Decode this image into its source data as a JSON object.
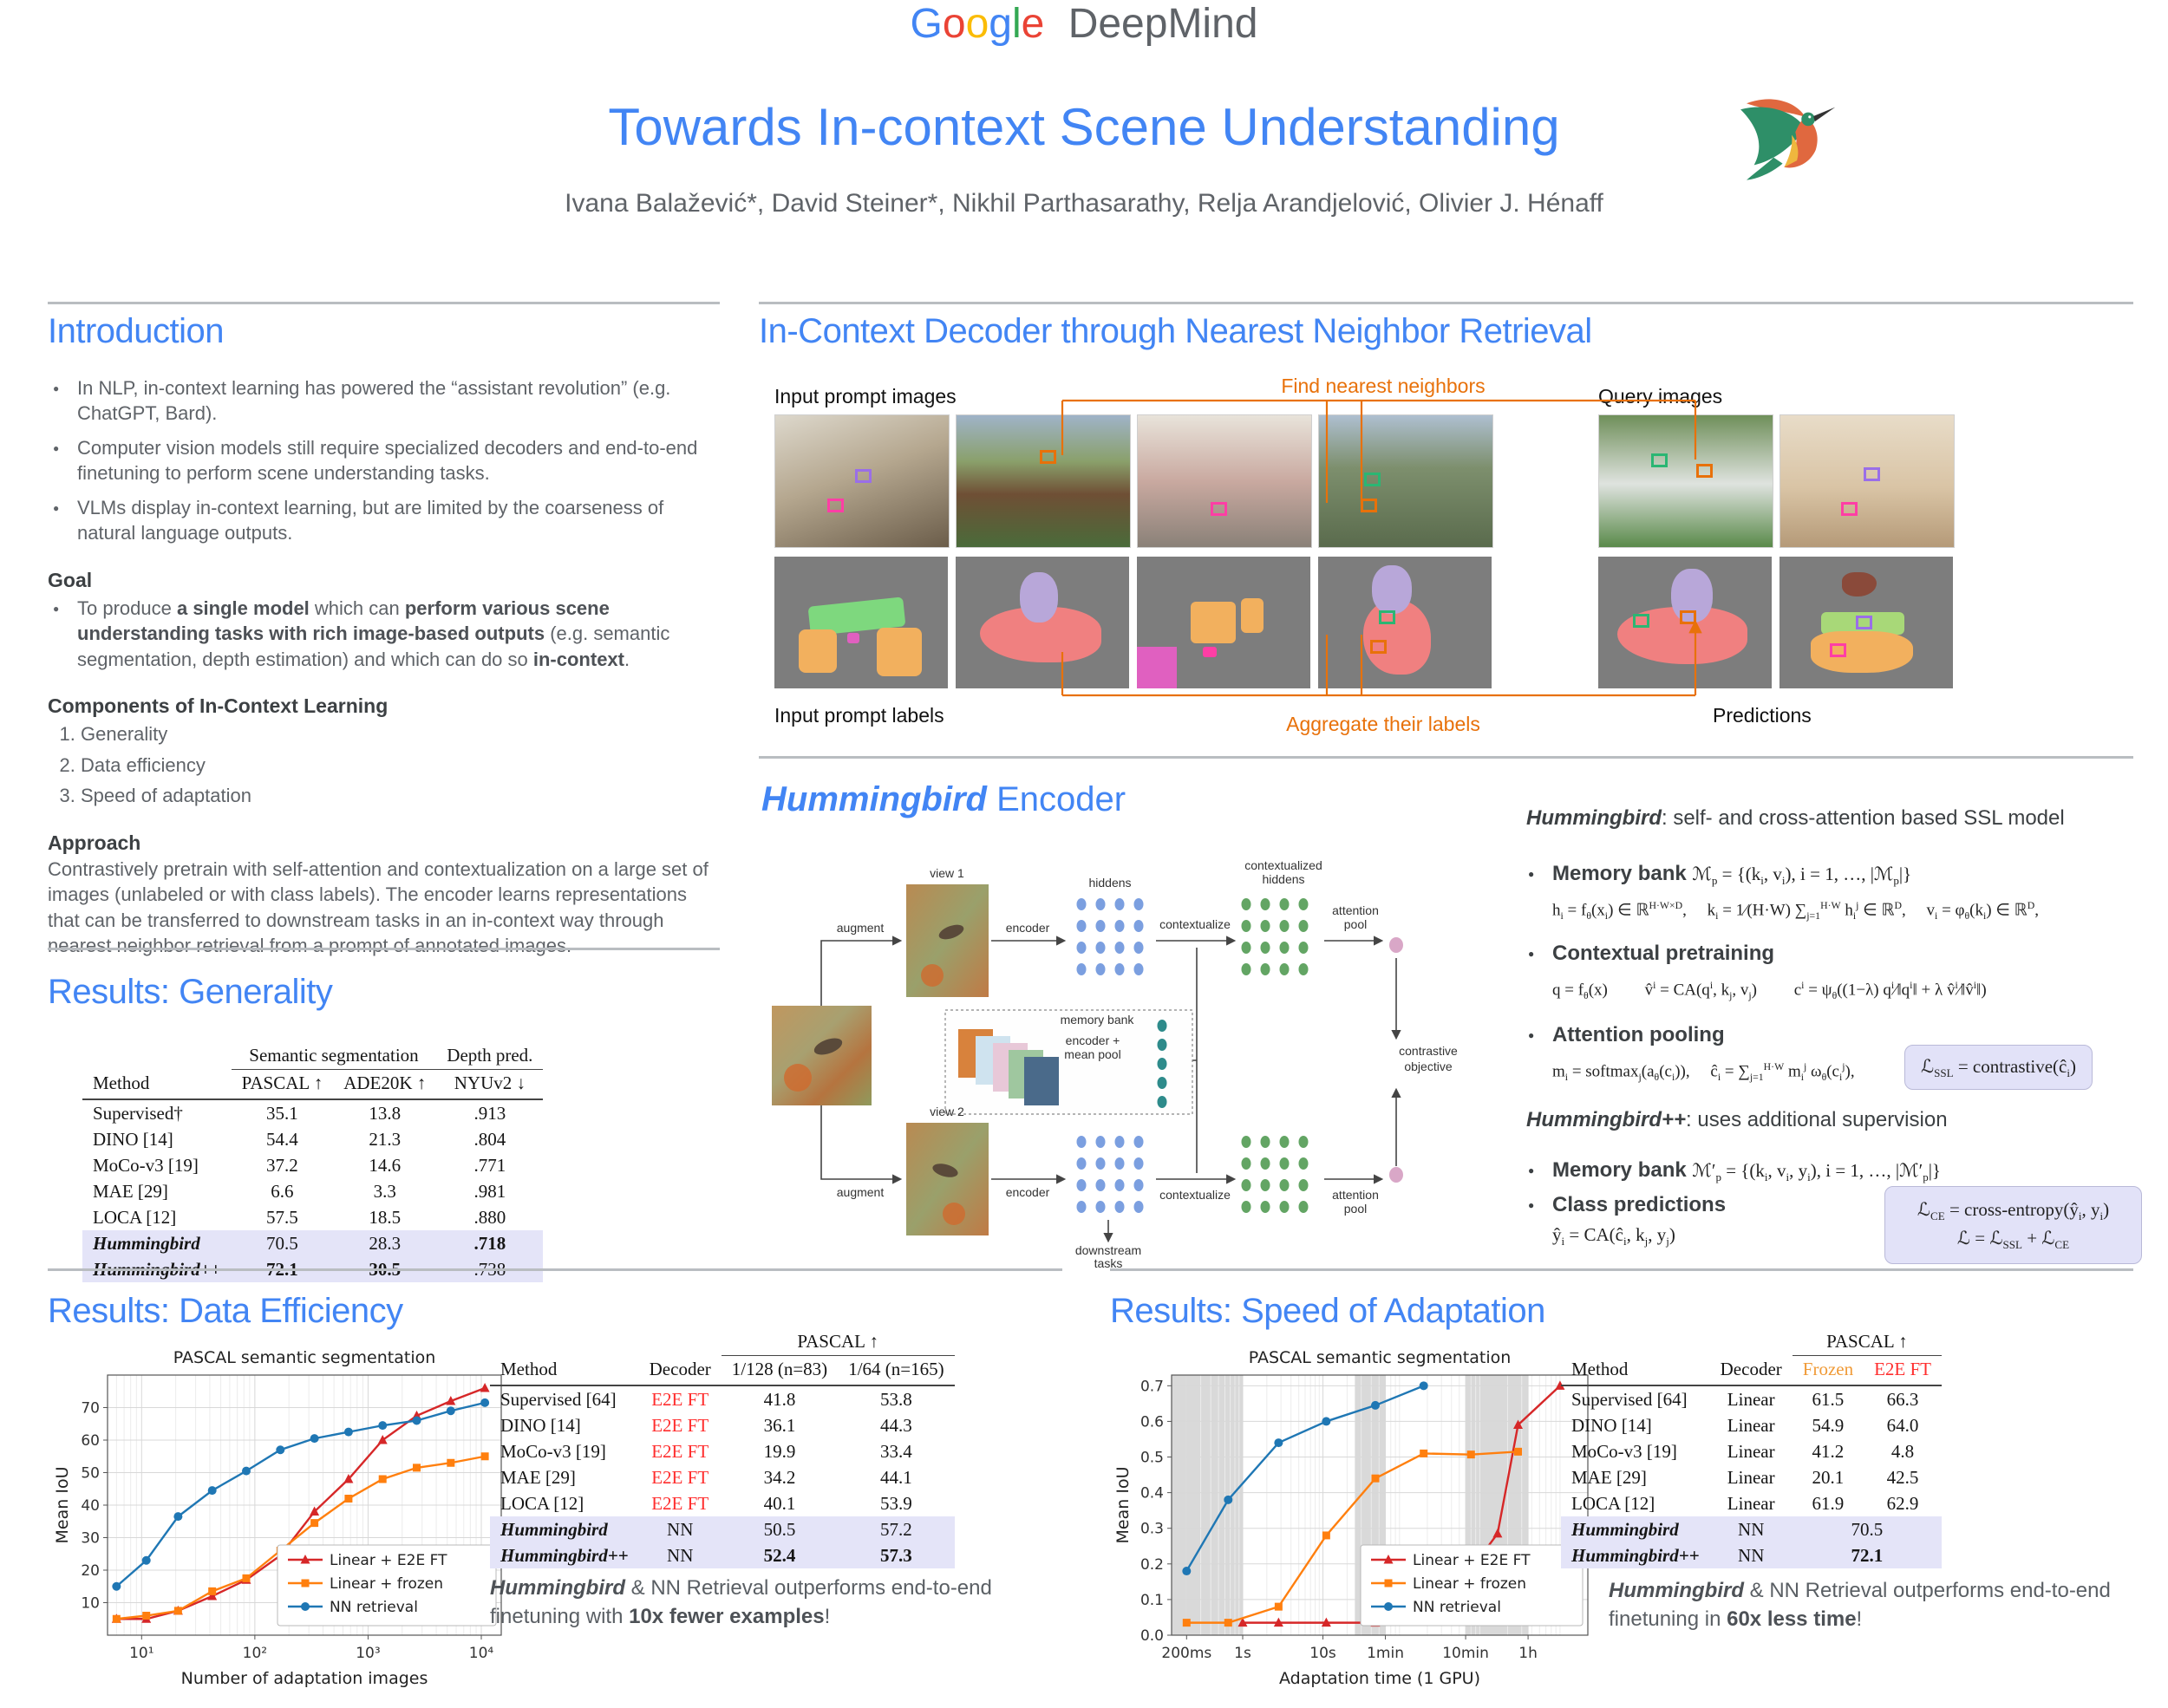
{
  "brand": {
    "google_letters": [
      {
        "ch": "G",
        "color": "#4285F4"
      },
      {
        "ch": "o",
        "color": "#EA4335"
      },
      {
        "ch": "o",
        "color": "#FBBC05"
      },
      {
        "ch": "g",
        "color": "#4285F4"
      },
      {
        "ch": "l",
        "color": "#34A853"
      },
      {
        "ch": "e",
        "color": "#EA4335"
      }
    ],
    "deepmind": "DeepMind"
  },
  "header": {
    "title": "Towards In-context Scene Understanding",
    "authors": "Ivana Balažević*, David Steiner*, Nikhil Parthasarathy, Relja Arandjelović, Olivier J. Hénaff"
  },
  "colors": {
    "accent_blue": "#4285F4",
    "text_gray": "#5f6368",
    "orange_annotation": "#e8710a",
    "highlight_row": "#e4e4f8",
    "red_label": "#ff2d2d",
    "orange_label": "#f09a36",
    "series_red": "#d62728",
    "series_orange": "#ff7f0e",
    "series_blue": "#1f77b4",
    "dots_blue": "#7b9fe0",
    "dots_green": "#63a564",
    "dots_teal": "#2e8b8b",
    "dot_pink": "#d9a7c7"
  },
  "intro": {
    "heading": "Introduction",
    "bullets": [
      "In NLP, in-context learning has powered the “assistant revolution” (e.g. ChatGPT, Bard).",
      "Computer vision models still require specialized decoders and end-to-end finetuning to perform scene understanding tasks.",
      "VLMs display in-context learning, but are limited by the coarseness of natural language outputs."
    ],
    "goal_heading": "Goal",
    "goal_segments": [
      {
        "t": "To produce ",
        "s": ""
      },
      {
        "t": "a single model",
        "s": "b"
      },
      {
        "t": " which can ",
        "s": ""
      },
      {
        "t": "perform various scene understanding tasks with rich image-based outputs",
        "s": "b"
      },
      {
        "t": " (e.g. semantic segmentation, depth estimation) and which can do so ",
        "s": ""
      },
      {
        "t": "in-context",
        "s": "b"
      },
      {
        "t": ".",
        "s": ""
      }
    ],
    "components_heading": "Components of In-Context Learning",
    "components": [
      "Generality",
      "Data efficiency",
      "Speed of adaptation"
    ],
    "approach_heading": "Approach",
    "approach_text": "Contrastively pretrain with self-attention and contextualization on a large set of images (unlabeled or with class labels). The encoder learns representations that can be transferred to downstream tasks in an in-context way through nearest neighbor retrieval from a prompt of annotated images."
  },
  "decoder": {
    "heading": "In-Context Decoder through Nearest Neighbor Retrieval",
    "labels": {
      "input_prompt_images": "Input prompt images",
      "find_nearest": "Find nearest neighbors",
      "query_images": "Query images",
      "input_prompt_labels": "Input prompt labels",
      "aggregate": "Aggregate their labels",
      "predictions": "Predictions"
    }
  },
  "encoder": {
    "heading_italic": "Hummingbird",
    "heading_rest": " Encoder",
    "diagram_labels": {
      "view1": "view 1",
      "view2": "view 2",
      "augment": "augment",
      "encoder": "encoder",
      "hiddens": "hiddens",
      "contextualize": "contextualize",
      "ctx_hiddens_1": "contextualized",
      "ctx_hiddens_2": "hiddens",
      "attention_1": "attention",
      "attention_2": "pool",
      "memory_bank": "memory bank",
      "mean_pool_1": "encoder +",
      "mean_pool_2": "mean pool",
      "contrastive_1": "contrastive",
      "contrastive_2": "objective",
      "downstream_1": "downstream",
      "downstream_2": "tasks"
    },
    "notes": {
      "hb_name": "Hummingbird",
      "hb_rest": ": self- and cross-attention based SSL model",
      "memory_bank_label": "Memory bank",
      "memory_bank_math": "ℳ_{p} = {(k_{i}, v_{i}), i = 1, …, |ℳ_{p}|}",
      "hidden_math": "h_{i} = f_{θ}(x_{i}) ∈ ℝ^{H·W×D},  k_{i} = 1⁄(H·W) ∑_{j=1}^{H·W} h_{i}^{j} ∈ ℝ^{D},  v_{i} = φ_{θ}(k_{i}) ∈ ℝ^{D},",
      "contextual_label": "Contextual pretraining",
      "contextual_math": "q = f_{θ}(x)   v̂^{i} = CA(q^{i}, k_{j}, v_{j})   c^{i} = ψ_{θ}((1−λ) q^{i}⁄‖q^{i}‖ + λ v̂^{i}⁄‖v̂^{i}‖)",
      "attention_label": "Attention pooling",
      "attention_math": "m_{i} = softmax_{j}(a_{θ}(c_{i})),  ĉ_{i} = ∑_{j=1}^{H·W} m_{i}^{j} ω_{θ}(c_{i}^{j}),",
      "loss_ssl": "ℒ_{SSL} = contrastive(ĉ_{i})",
      "hbpp_name": "Hummingbird++",
      "hbpp_rest": ": uses additional supervision",
      "memory_bank2_label": "Memory bank",
      "memory_bank2_math": "ℳ′_{p} = {(k_{i}, v_{i}, y_{i}), i = 1, …, |ℳ′_{p}|}",
      "class_pred_label": "Class predictions",
      "class_pred_math": "ŷ_{i} = CA(ĉ_{i}, k_{j}, y_{j})",
      "loss_ce": "ℒ_{CE} = cross-entropy(ŷ_{i}, y_{i})",
      "loss_total": "ℒ = ℒ_{SSL} + ℒ_{CE}"
    }
  },
  "generality": {
    "heading": "Results: Generality",
    "table": {
      "groups": [
        {
          "label": "",
          "span": 1
        },
        {
          "label": "Semantic segmentation",
          "span": 2,
          "rule": true
        },
        {
          "label": "Depth pred.",
          "span": 1,
          "rule": true
        }
      ],
      "headers": [
        {
          "label": "Method"
        },
        {
          "label": "PASCAL ↑"
        },
        {
          "label": "ADE20K ↑"
        },
        {
          "label": "NYUv2 ↓"
        }
      ],
      "rows": [
        {
          "cells": [
            "Supervised†",
            "35.1",
            "13.8",
            ".913"
          ]
        },
        {
          "cells": [
            "DINO [14]",
            "54.4",
            "21.3",
            ".804"
          ]
        },
        {
          "cells": [
            "MoCo-v3 [19]",
            "37.2",
            "14.6",
            ".771"
          ]
        },
        {
          "cells": [
            "MAE [29]",
            "6.6",
            "3.3",
            ".981"
          ]
        },
        {
          "cells": [
            "LOCA [12]",
            "57.5",
            "18.5",
            ".880"
          ]
        },
        {
          "cells": [
            "Hummingbird",
            "70.5",
            "28.3",
            ".718"
          ],
          "hb": true,
          "highlight": true,
          "bold": [
            3
          ]
        },
        {
          "cells": [
            "Hummingbird++",
            "72.1",
            "30.5",
            ".738"
          ],
          "hb": true,
          "highlight": true,
          "bold": [
            1,
            2
          ]
        }
      ]
    }
  },
  "data_efficiency": {
    "heading": "Results: Data Efficiency",
    "table": {
      "groups": [
        {
          "label": "",
          "span": 2
        },
        {
          "label": "PASCAL ↑",
          "span": 2,
          "rule": true
        }
      ],
      "headers": [
        {
          "label": "Method"
        },
        {
          "label": "Decoder"
        },
        {
          "label": "1/128 (n=83)"
        },
        {
          "label": "1/64 (n=165)"
        }
      ],
      "rows": [
        {
          "cells": [
            "Supervised [64]",
            "E2E FT",
            "41.8",
            "53.8"
          ],
          "red": [
            1
          ]
        },
        {
          "cells": [
            "DINO [14]",
            "E2E FT",
            "36.1",
            "44.3"
          ],
          "red": [
            1
          ]
        },
        {
          "cells": [
            "MoCo-v3 [19]",
            "E2E FT",
            "19.9",
            "33.4"
          ],
          "red": [
            1
          ]
        },
        {
          "cells": [
            "MAE [29]",
            "E2E FT",
            "34.2",
            "44.1"
          ],
          "red": [
            1
          ]
        },
        {
          "cells": [
            "LOCA [12]",
            "E2E FT",
            "40.1",
            "53.9"
          ],
          "red": [
            1
          ]
        },
        {
          "cells": [
            "Hummingbird",
            "NN",
            "50.5",
            "57.2"
          ],
          "hb": true,
          "highlight": true
        },
        {
          "cells": [
            "Hummingbird++",
            "NN",
            "52.4",
            "57.3"
          ],
          "hb": true,
          "highlight": true,
          "bold": [
            2,
            3
          ]
        }
      ]
    },
    "caption_segments": [
      {
        "t": "Hummingbird",
        "s": "bi"
      },
      {
        "t": " & NN Retrieval outperforms end-to-end finetuning with ",
        "s": ""
      },
      {
        "t": "10x fewer examples",
        "s": "b"
      },
      {
        "t": "!",
        "s": ""
      }
    ]
  },
  "speed": {
    "heading": "Results: Speed of Adaptation",
    "table": {
      "groups": [
        {
          "label": "",
          "span": 2
        },
        {
          "label": "PASCAL ↑",
          "span": 2,
          "rule": true
        }
      ],
      "headers": [
        {
          "label": "Method"
        },
        {
          "label": "Decoder"
        },
        {
          "label": "Frozen",
          "color": "#f09a36"
        },
        {
          "label": "E2E FT",
          "color": "#ff2d2d"
        }
      ],
      "rows": [
        {
          "cells": [
            "Supervised [64]",
            "Linear",
            "61.5",
            "66.3"
          ]
        },
        {
          "cells": [
            "DINO [14]",
            "Linear",
            "54.9",
            "64.0"
          ]
        },
        {
          "cells": [
            "MoCo-v3 [19]",
            "Linear",
            "41.2",
            "4.8"
          ]
        },
        {
          "cells": [
            "MAE [29]",
            "Linear",
            "20.1",
            "42.5"
          ]
        },
        {
          "cells": [
            "LOCA [12]",
            "Linear",
            "61.9",
            "62.9"
          ]
        },
        {
          "cells": [
            "Hummingbird",
            "NN",
            "70.5"
          ],
          "merge_last": true,
          "hb": true,
          "highlight": true
        },
        {
          "cells": [
            "Hummingbird++",
            "NN",
            "72.1"
          ],
          "merge_last": true,
          "hb": true,
          "highlight": true,
          "bold": [
            2
          ]
        }
      ]
    },
    "caption_segments": [
      {
        "t": "Hummingbird",
        "s": "bi"
      },
      {
        "t": " & NN Retrieval outperforms end-to-end finetuning in ",
        "s": ""
      },
      {
        "t": "60x less time",
        "s": "b"
      },
      {
        "t": "!",
        "s": ""
      }
    ]
  },
  "chart_data": [
    {
      "type": "line",
      "title": "PASCAL semantic segmentation",
      "xlabel": "Number of adaptation images",
      "ylabel": "Mean IoU",
      "xscale": "log",
      "xlim": [
        5,
        15000
      ],
      "ylim": [
        0,
        80
      ],
      "xticks": [
        10,
        100,
        1000,
        10000
      ],
      "xtick_labels": [
        "10¹",
        "10²",
        "10³",
        "10⁴"
      ],
      "yticks": [
        10,
        20,
        30,
        40,
        50,
        60,
        70
      ],
      "legend_position": "lower right",
      "grid": true,
      "series": [
        {
          "name": "Linear + E2E FT",
          "color": "#d62728",
          "marker": "triangle",
          "x": [
            6,
            11,
            21,
            42,
            84,
            168,
            336,
            672,
            1344,
            2688,
            5376,
            10752
          ],
          "y": [
            5,
            5,
            7.5,
            12,
            17,
            24.5,
            38,
            48,
            60,
            67.5,
            72,
            76
          ]
        },
        {
          "name": "Linear + frozen",
          "color": "#ff7f0e",
          "marker": "square",
          "x": [
            6,
            11,
            21,
            42,
            84,
            168,
            336,
            672,
            1344,
            2688,
            5376,
            10752
          ],
          "y": [
            5,
            6,
            7.5,
            13.5,
            17.5,
            26,
            34.5,
            42,
            48,
            51.5,
            53,
            55
          ]
        },
        {
          "name": "NN retrieval",
          "color": "#1f77b4",
          "marker": "circle",
          "x": [
            6,
            11,
            21,
            42,
            84,
            168,
            336,
            672,
            1344,
            2688,
            5376,
            10752
          ],
          "y": [
            15,
            23,
            36.5,
            44.5,
            50.5,
            57,
            60.5,
            62.5,
            64.5,
            66,
            69,
            71.5
          ]
        }
      ]
    },
    {
      "type": "line",
      "title": "PASCAL semantic segmentation",
      "xlabel": "Adaptation time (1 GPU)",
      "ylabel": "Mean IoU",
      "xscale": "log",
      "xlim": [
        0.13,
        20000
      ],
      "ylim": [
        0,
        0.73
      ],
      "xticks": [
        0.2,
        1,
        10,
        60,
        600,
        3600
      ],
      "xtick_labels": [
        "200ms",
        "1s",
        "10s",
        "1min",
        "10min",
        "1h"
      ],
      "yticks": [
        0,
        0.1,
        0.2,
        0.3,
        0.4,
        0.5,
        0.6,
        0.7
      ],
      "ytick_fmt": "1dp",
      "legend_position": "lower right",
      "grid": true,
      "shaded_xbands": [
        [
          0.13,
          1
        ],
        [
          25,
          60
        ],
        [
          600,
          3600
        ]
      ],
      "series": [
        {
          "name": "Linear + E2E FT",
          "color": "#d62728",
          "marker": "triangle",
          "x": [
            1,
            2.8,
            11,
            45,
            180,
            400,
            700,
            1500,
            2700,
            9000
          ],
          "y": [
            0.035,
            0.035,
            0.035,
            0.035,
            0.038,
            0.085,
            0.185,
            0.285,
            0.59,
            0.7
          ]
        },
        {
          "name": "Linear + frozen",
          "color": "#ff7f0e",
          "marker": "square",
          "x": [
            0.2,
            0.66,
            2.8,
            11,
            45,
            180,
            700,
            2700
          ],
          "y": [
            0.035,
            0.035,
            0.08,
            0.28,
            0.44,
            0.51,
            0.507,
            0.515
          ]
        },
        {
          "name": "NN retrieval",
          "color": "#1f77b4",
          "marker": "circle",
          "x": [
            0.2,
            0.66,
            2.8,
            11,
            45,
            180
          ],
          "y": [
            0.18,
            0.38,
            0.54,
            0.6,
            0.645,
            0.7
          ]
        }
      ]
    }
  ]
}
